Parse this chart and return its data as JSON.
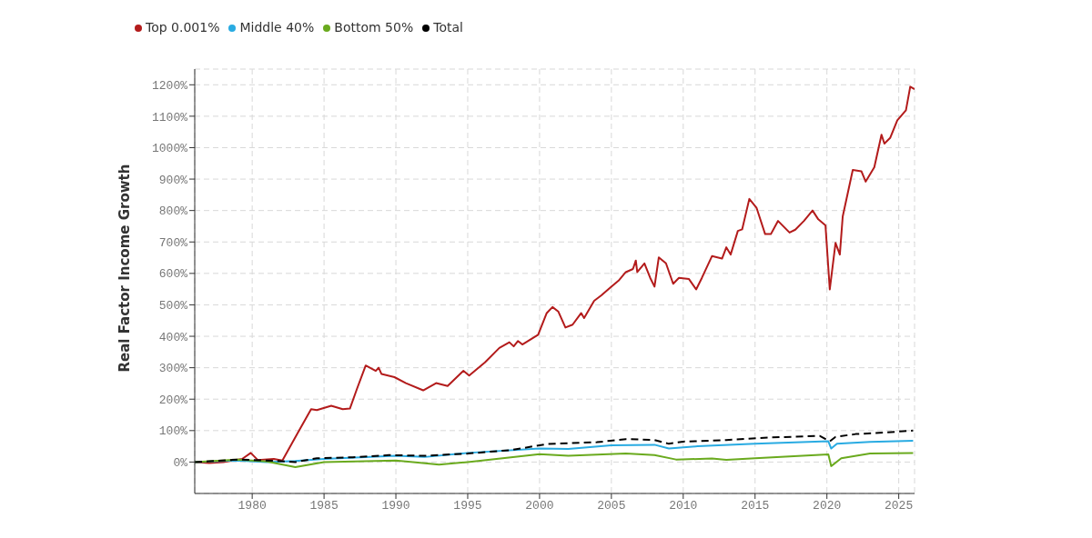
{
  "chart_data": {
    "type": "line",
    "ylabel": "Real Factor Income Growth",
    "legend": "top left",
    "grid": true,
    "marker": "none",
    "xlim": [
      1976,
      2026.1
    ],
    "xticks": [
      1980,
      1985,
      1990,
      1995,
      2000,
      2005,
      2010,
      2015,
      2020,
      2025
    ],
    "ylim": [
      -100,
      1250
    ],
    "yticks": [
      {
        "value": 0,
        "label": "0%"
      },
      {
        "value": 100,
        "label": "100%"
      },
      {
        "value": 200,
        "label": "200%"
      },
      {
        "value": 300,
        "label": "300%"
      },
      {
        "value": 400,
        "label": "400%"
      },
      {
        "value": 500,
        "label": "500%"
      },
      {
        "value": 600,
        "label": "600%"
      },
      {
        "value": 700,
        "label": "700%"
      },
      {
        "value": 800,
        "label": "800%"
      },
      {
        "value": 900,
        "label": "900%"
      },
      {
        "value": 1000,
        "label": "1000%"
      },
      {
        "value": 1100,
        "label": "1100%"
      },
      {
        "value": 1200,
        "label": "1200%"
      }
    ],
    "series": [
      {
        "name": "Top 0.001%",
        "color": "#b31b1b",
        "line_style": "solid",
        "x": [
          1976.1,
          1977.0,
          1978.0,
          1979.3,
          1979.9,
          1980.4,
          1981.5,
          1982.1,
          1983.2,
          1984.1,
          1984.5,
          1985.5,
          1986.3,
          1986.8,
          1987.3,
          1987.9,
          1988.6,
          1988.8,
          1989.0,
          1989.9,
          1990.7,
          1991.9,
          1992.8,
          1993.6,
          1994.7,
          1995.1,
          1996.2,
          1997.2,
          1997.9,
          1998.2,
          1998.5,
          1998.8,
          1999.9,
          2000.5,
          2000.9,
          2001.3,
          2001.8,
          2002.3,
          2002.9,
          2003.1,
          2003.8,
          2004.3,
          2004.9,
          2005.5,
          2006.0,
          2006.5,
          2006.7,
          2006.8,
          2007.3,
          2007.7,
          2008.0,
          2008.3,
          2008.8,
          2009.3,
          2009.7,
          2010.4,
          2010.9,
          2011.3,
          2012.0,
          2012.7,
          2013.0,
          2013.3,
          2013.8,
          2014.1,
          2014.6,
          2015.1,
          2015.7,
          2016.1,
          2016.6,
          2017.4,
          2017.8,
          2018.4,
          2019.0,
          2019.4,
          2019.9,
          2020.2,
          2020.6,
          2020.9,
          2021.1,
          2021.8,
          2022.4,
          2022.7,
          2023.3,
          2023.8,
          2024.0,
          2024.4,
          2024.9,
          2025.5,
          2025.8,
          2026.1
        ],
        "values": [
          0,
          -3,
          0,
          10,
          29,
          6,
          10,
          5,
          95,
          168,
          165,
          179,
          168,
          170,
          234,
          307,
          290,
          300,
          280,
          270,
          251,
          228,
          251,
          242,
          290,
          275,
          317,
          363,
          381,
          368,
          385,
          374,
          405,
          474,
          493,
          479,
          428,
          437,
          474,
          458,
          513,
          530,
          554,
          577,
          604,
          614,
          641,
          604,
          632,
          586,
          558,
          651,
          632,
          567,
          586,
          582,
          549,
          586,
          655,
          647,
          683,
          660,
          735,
          740,
          837,
          809,
          725,
          725,
          767,
          730,
          739,
          767,
          800,
          772,
          753,
          549,
          697,
          660,
          781,
          929,
          925,
          892,
          938,
          1041,
          1013,
          1031,
          1087,
          1119,
          1194,
          1186
        ]
      },
      {
        "name": "Middle 40%",
        "color": "#29abe2",
        "line_style": "solid",
        "x": [
          1976,
          1979,
          1981,
          1983,
          1985,
          1990,
          1992,
          1995,
          2000,
          2002,
          2005,
          2008,
          2009,
          2011,
          2015,
          2020.1,
          2020.3,
          2020.7,
          2023,
          2026
        ],
        "values": [
          0,
          5,
          0,
          3,
          10,
          20,
          16,
          29,
          43,
          42,
          53,
          55,
          43,
          50,
          58,
          66,
          43,
          58,
          64,
          68
        ]
      },
      {
        "name": "Bottom 50%",
        "color": "#6aaa1e",
        "line_style": "solid",
        "x": [
          1976,
          1979,
          1981,
          1983,
          1985,
          1990,
          1993,
          1995,
          2000,
          2002,
          2006,
          2008,
          2009.5,
          2012,
          2013,
          2015,
          2020.1,
          2020.3,
          2021,
          2023,
          2026
        ],
        "values": [
          0,
          8,
          2,
          -16,
          0,
          5,
          -8,
          0,
          25,
          20,
          27,
          22,
          8,
          11,
          7,
          12,
          24,
          -13,
          12,
          27,
          29
        ]
      },
      {
        "name": "Total",
        "color": "#000000",
        "line_style": "dashed",
        "x": [
          1976,
          1979,
          1981.5,
          1983,
          1984.5,
          1987,
          1989.5,
          1992,
          1995,
          1998,
          2000.5,
          2002,
          2004,
          2006,
          2008,
          2009,
          2010,
          2013,
          2016,
          2019.5,
          2020.2,
          2020.6,
          2022,
          2024,
          2026
        ],
        "values": [
          0,
          8,
          4,
          0,
          12,
          15,
          22,
          20,
          27,
          38,
          57,
          60,
          63,
          73,
          70,
          58,
          65,
          70,
          78,
          83,
          66,
          80,
          89,
          94,
          100
        ]
      }
    ]
  }
}
